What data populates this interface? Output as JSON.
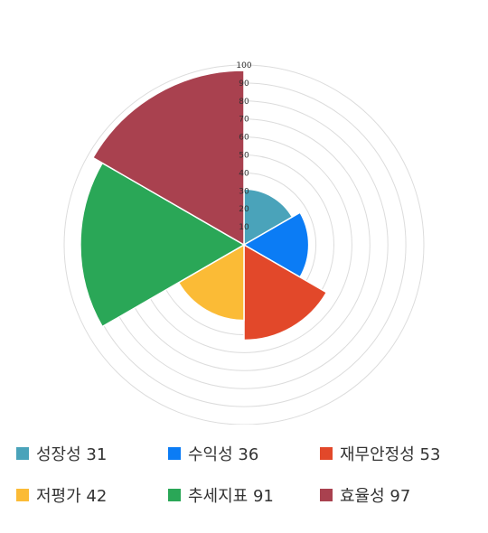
{
  "chart_data": {
    "type": "polar-area",
    "rmax": 100,
    "ticks": [
      "100",
      "90",
      "80",
      "70",
      "60",
      "50",
      "40",
      "30",
      "20",
      "10"
    ],
    "categories": [
      "성장성",
      "수익성",
      "재무안정성",
      "저평가",
      "추세지표",
      "효율성"
    ],
    "values": [
      31,
      36,
      53,
      42,
      91,
      97
    ],
    "colors": [
      "#4aa3ba",
      "#0b7cf5",
      "#e2482a",
      "#fbbb36",
      "#2aa757",
      "#a9414f"
    ],
    "legend_labels": [
      "성장성 31",
      "수익성 36",
      "재무안정성 53",
      "저평가 42",
      "추세지표 91",
      "효율성 97"
    ],
    "grid": true,
    "legend_position": "bottom"
  }
}
